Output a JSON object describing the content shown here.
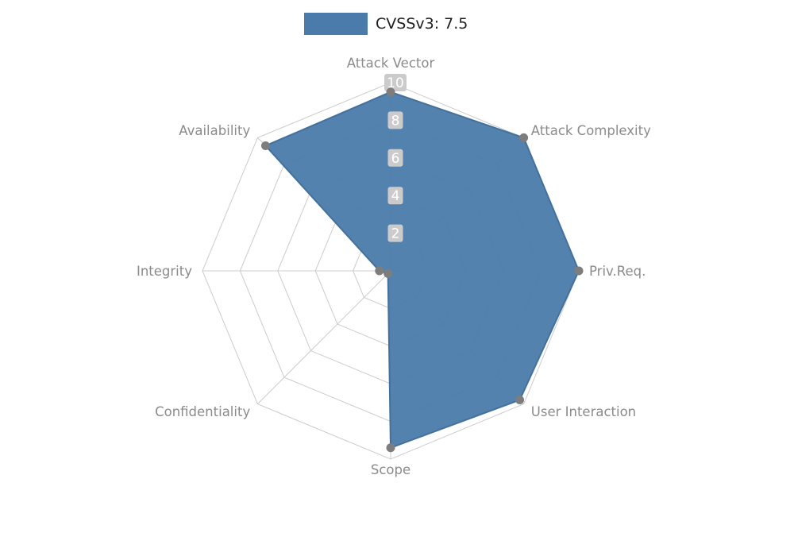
{
  "legend": {
    "label": "CVSSv3: 7.5"
  },
  "chart_data": {
    "type": "radar",
    "title": "CVSSv3: 7.5",
    "categories": [
      "Attack Vector",
      "Attack Complexity",
      "Priv.Req.",
      "User Interaction",
      "Scope",
      "Confidentiality",
      "Integrity",
      "Availability"
    ],
    "series": [
      {
        "name": "CVSSv3: 7.5",
        "values": [
          9.5,
          10,
          10,
          9.7,
          9.4,
          0.2,
          0.6,
          9.4
        ]
      }
    ],
    "radial_ticks": [
      2,
      4,
      6,
      8,
      10
    ],
    "rmax": 10,
    "grid": true,
    "legend_position": "top-center",
    "fill_opacity": 0.95,
    "colors": {
      "fill": "#4a7bab",
      "stroke": "#44719c",
      "marker": "#7d7d7d",
      "grid": "#cccccc",
      "label": "#8b8b8b",
      "tick_box": "#cbcbcb",
      "tick_text": "#ffffff"
    }
  }
}
